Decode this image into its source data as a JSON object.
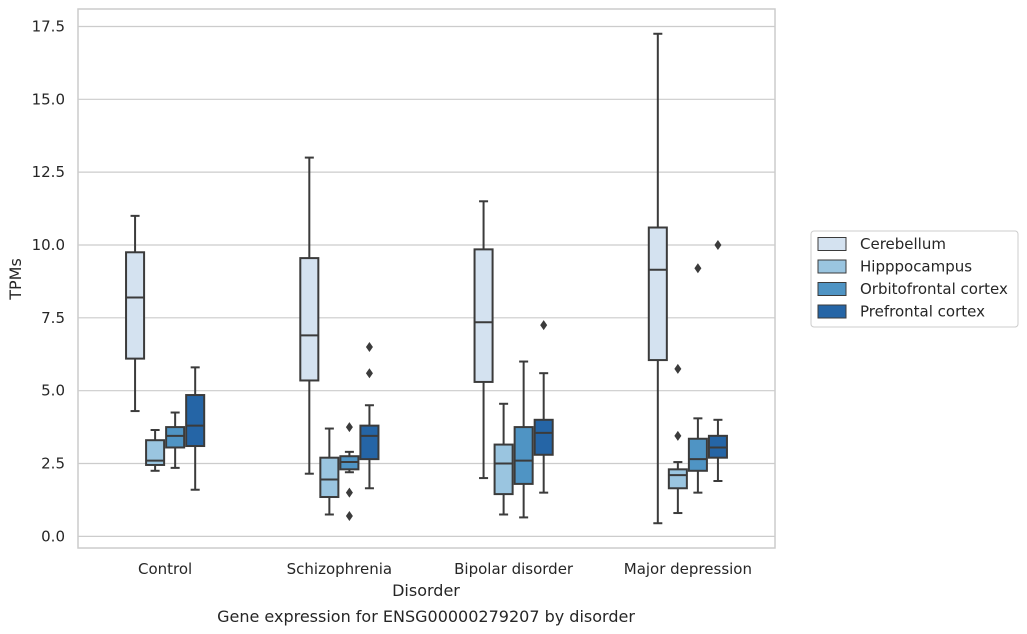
{
  "chart_data": {
    "type": "box",
    "title": "Gene expression for ENSG00000279207 by disorder",
    "xlabel": "Disorder",
    "ylabel": "TPMs",
    "ylim": [
      -0.4,
      18.1
    ],
    "yticks": [
      "0.0",
      "2.5",
      "5.0",
      "7.5",
      "10.0",
      "12.5",
      "15.0",
      "17.5"
    ],
    "ytick_values": [
      0,
      2.5,
      5,
      7.5,
      10,
      12.5,
      15,
      17.5
    ],
    "categories": [
      "Control",
      "Schizophrenia",
      "Bipolar disorder",
      "Major depression"
    ],
    "grid": true,
    "legend_position": "right",
    "series": [
      {
        "name": "Cerebellum",
        "color": "#d4e2f0",
        "boxes": [
          {
            "whislo": 4.3,
            "q1": 6.1,
            "med": 8.2,
            "q3": 9.75,
            "whishi": 11.0,
            "fliers": []
          },
          {
            "whislo": 2.15,
            "q1": 5.35,
            "med": 6.9,
            "q3": 9.55,
            "whishi": 13.0,
            "fliers": []
          },
          {
            "whislo": 2.0,
            "q1": 5.3,
            "med": 7.35,
            "q3": 9.85,
            "whishi": 11.5,
            "fliers": []
          },
          {
            "whislo": 0.45,
            "q1": 6.05,
            "med": 9.15,
            "q3": 10.6,
            "whishi": 17.25,
            "fliers": []
          }
        ]
      },
      {
        "name": "Hipppocampus",
        "color": "#9ac5e0",
        "boxes": [
          {
            "whislo": 2.25,
            "q1": 2.45,
            "med": 2.6,
            "q3": 3.3,
            "whishi": 3.65,
            "fliers": []
          },
          {
            "whislo": 0.75,
            "q1": 1.35,
            "med": 1.95,
            "q3": 2.7,
            "whishi": 3.7,
            "fliers": []
          },
          {
            "whislo": 0.75,
            "q1": 1.45,
            "med": 2.5,
            "q3": 3.15,
            "whishi": 4.55,
            "fliers": []
          },
          {
            "whislo": 0.8,
            "q1": 1.65,
            "med": 2.1,
            "q3": 2.3,
            "whishi": 2.55,
            "fliers": [
              3.45,
              5.75
            ]
          }
        ]
      },
      {
        "name": "Orbitofrontal cortex",
        "color": "#4f94c4",
        "boxes": [
          {
            "whislo": 2.35,
            "q1": 3.05,
            "med": 3.45,
            "q3": 3.75,
            "whishi": 4.25,
            "fliers": []
          },
          {
            "whislo": 2.2,
            "q1": 2.3,
            "med": 2.55,
            "q3": 2.75,
            "whishi": 2.9,
            "fliers": [
              3.75,
              1.5,
              0.7
            ]
          },
          {
            "whislo": 0.65,
            "q1": 1.8,
            "med": 2.6,
            "q3": 3.75,
            "whishi": 6.0,
            "fliers": []
          },
          {
            "whislo": 1.5,
            "q1": 2.25,
            "med": 2.65,
            "q3": 3.35,
            "whishi": 4.05,
            "fliers": [
              9.2
            ]
          }
        ]
      },
      {
        "name": "Prefrontal cortex",
        "color": "#2565a6",
        "boxes": [
          {
            "whislo": 1.6,
            "q1": 3.1,
            "med": 3.8,
            "q3": 4.85,
            "whishi": 5.8,
            "fliers": []
          },
          {
            "whislo": 1.65,
            "q1": 2.65,
            "med": 3.45,
            "q3": 3.8,
            "whishi": 4.5,
            "fliers": [
              6.5,
              5.6
            ]
          },
          {
            "whislo": 1.5,
            "q1": 2.8,
            "med": 3.55,
            "q3": 4.0,
            "whishi": 5.6,
            "fliers": [
              7.25
            ]
          },
          {
            "whislo": 1.9,
            "q1": 2.7,
            "med": 3.05,
            "q3": 3.45,
            "whishi": 4.0,
            "fliers": [
              10.0
            ]
          }
        ]
      }
    ]
  }
}
